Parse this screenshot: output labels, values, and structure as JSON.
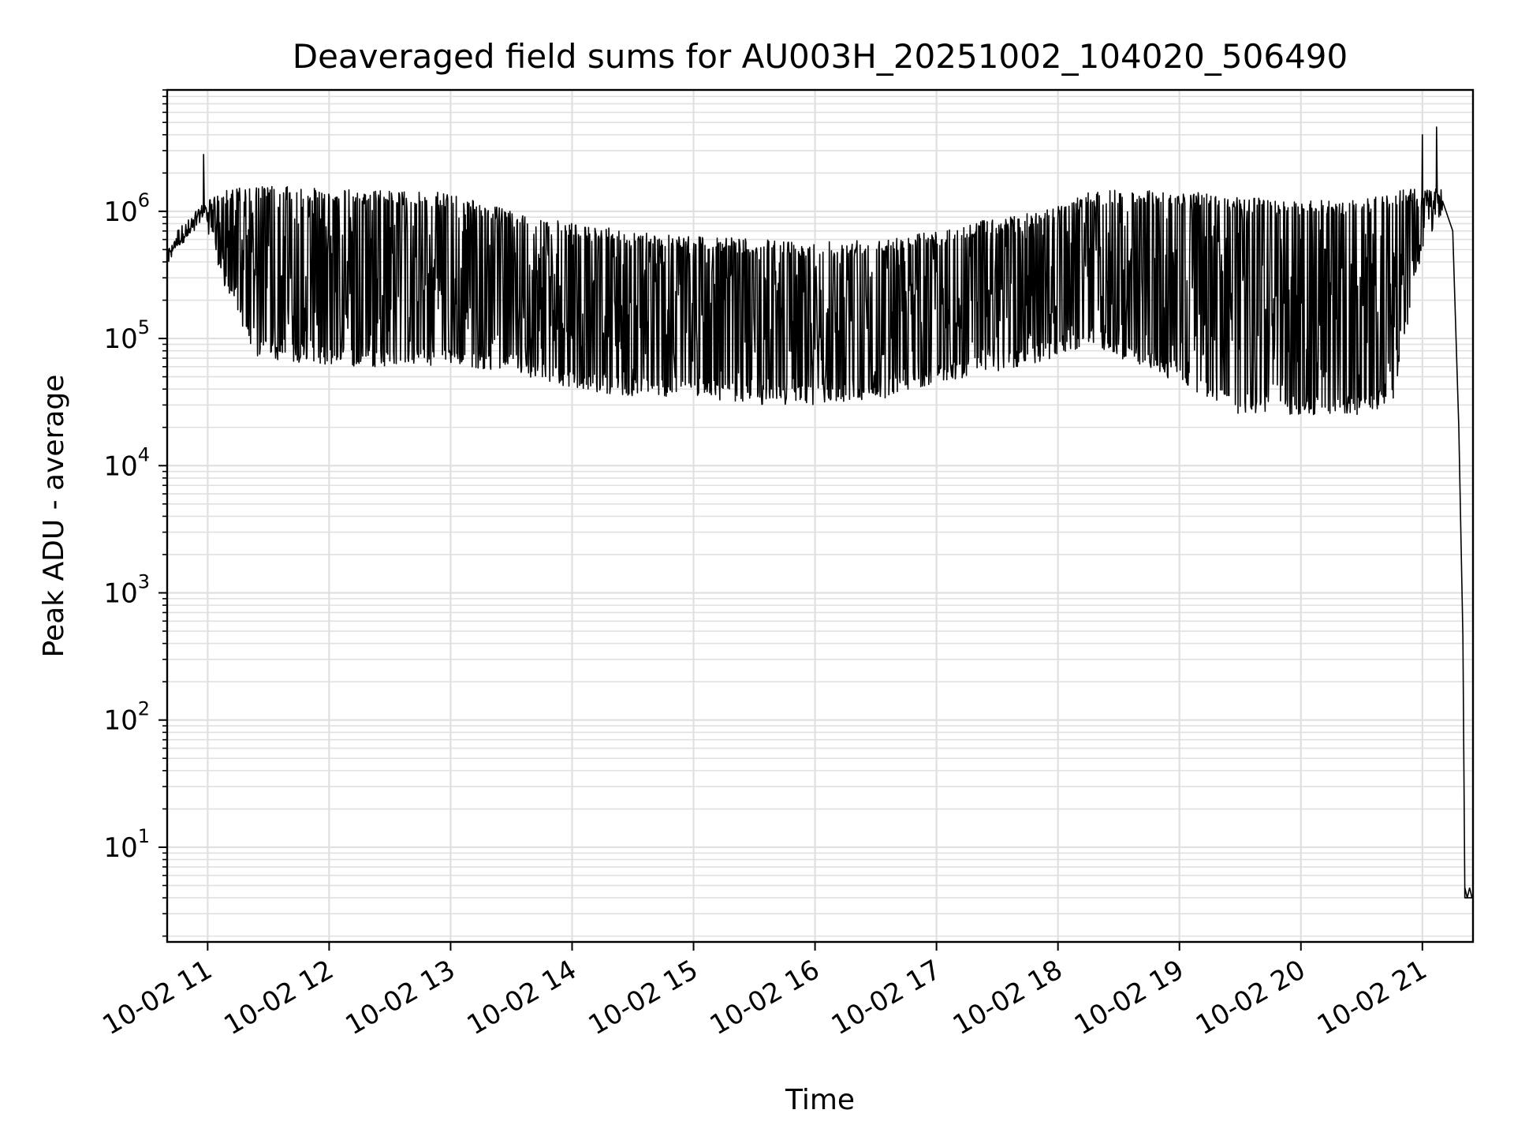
{
  "chart_data": {
    "type": "line",
    "title": "Deaveraged field sums for AU003H_20251002_104020_506490",
    "xlabel": "Time",
    "ylabel": "Peak ADU - average",
    "yscale": "log",
    "ylim": [
      1.8,
      9000000
    ],
    "xlim": [
      "2025-10-02 10:40",
      "2025-10-02 21:25"
    ],
    "grid": true,
    "line_color": "#000000",
    "grid_color": "#e0e0e0",
    "x_ticks": [
      {
        "value": "2025-10-02 11:00",
        "label": "10-02 11"
      },
      {
        "value": "2025-10-02 12:00",
        "label": "10-02 12"
      },
      {
        "value": "2025-10-02 13:00",
        "label": "10-02 13"
      },
      {
        "value": "2025-10-02 14:00",
        "label": "10-02 14"
      },
      {
        "value": "2025-10-02 15:00",
        "label": "10-02 15"
      },
      {
        "value": "2025-10-02 16:00",
        "label": "10-02 16"
      },
      {
        "value": "2025-10-02 17:00",
        "label": "10-02 17"
      },
      {
        "value": "2025-10-02 18:00",
        "label": "10-02 18"
      },
      {
        "value": "2025-10-02 19:00",
        "label": "10-02 19"
      },
      {
        "value": "2025-10-02 20:00",
        "label": "10-02 20"
      },
      {
        "value": "2025-10-02 21:00",
        "label": "10-02 21"
      }
    ],
    "y_ticks": [
      {
        "value": 10,
        "base": "10",
        "exp": "1"
      },
      {
        "value": 100,
        "base": "10",
        "exp": "2"
      },
      {
        "value": 1000,
        "base": "10",
        "exp": "3"
      },
      {
        "value": 10000,
        "base": "10",
        "exp": "4"
      },
      {
        "value": 100000,
        "base": "10",
        "exp": "5"
      },
      {
        "value": 1000000,
        "base": "10",
        "exp": "6"
      }
    ],
    "envelope": {
      "time": [
        "2025-10-02 10:40",
        "2025-10-02 10:50",
        "2025-10-02 10:58",
        "2025-10-02 11:10",
        "2025-10-02 11:25",
        "2025-10-02 11:45",
        "2025-10-02 12:00",
        "2025-10-02 12:30",
        "2025-10-02 13:00",
        "2025-10-02 13:30",
        "2025-10-02 14:00",
        "2025-10-02 14:30",
        "2025-10-02 15:00",
        "2025-10-02 15:30",
        "2025-10-02 16:00",
        "2025-10-02 16:30",
        "2025-10-02 17:00",
        "2025-10-02 17:30",
        "2025-10-02 18:00",
        "2025-10-02 18:15",
        "2025-10-02 18:30",
        "2025-10-02 19:00",
        "2025-10-02 19:30",
        "2025-10-02 20:00",
        "2025-10-02 20:30",
        "2025-10-02 20:45",
        "2025-10-02 21:00",
        "2025-10-02 21:10"
      ],
      "upper": [
        500000,
        750000,
        1200000,
        1500000,
        1600000,
        1550000,
        1500000,
        1450000,
        1400000,
        1000000,
        800000,
        700000,
        650000,
        600000,
        580000,
        620000,
        700000,
        900000,
        1100000,
        1400000,
        1500000,
        1450000,
        1300000,
        1200000,
        1250000,
        1400000,
        1600000,
        1500000
      ],
      "lower": [
        450000,
        600000,
        900000,
        200000,
        70000,
        65000,
        60000,
        60000,
        60000,
        55000,
        40000,
        35000,
        35000,
        30000,
        30000,
        32000,
        45000,
        55000,
        70000,
        90000,
        70000,
        45000,
        25000,
        25000,
        25000,
        30000,
        500000,
        1000000
      ]
    },
    "tail": {
      "time": [
        "2025-10-02 21:10",
        "2025-10-02 21:15",
        "2025-10-02 21:18",
        "2025-10-02 21:20",
        "2025-10-02 21:21",
        "2025-10-02 21:22",
        "2025-10-02 21:25"
      ],
      "values": [
        1400000,
        700000,
        20000,
        450,
        4,
        4,
        4
      ]
    },
    "spikes": [
      {
        "time": "2025-10-02 10:58",
        "value": 2800000
      },
      {
        "time": "2025-10-02 21:00",
        "value": 4000000
      },
      {
        "time": "2025-10-02 21:07",
        "value": 4600000
      }
    ]
  }
}
